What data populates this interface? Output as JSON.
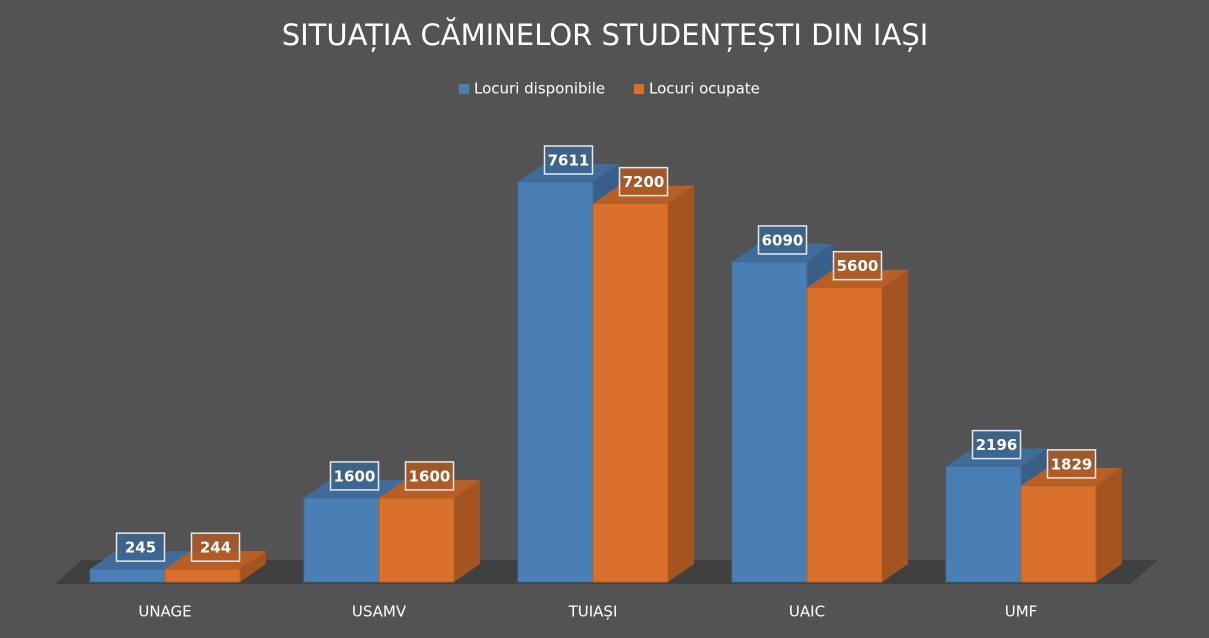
{
  "chart_data": {
    "type": "bar3d",
    "title": "SITUAȚIA CĂMINELOR STUDENȚEȘTI DIN IAȘI",
    "categories": [
      "UNAGE",
      "USAMV",
      "TUIAȘI",
      "UAIC",
      "UMF"
    ],
    "series": [
      {
        "name": "Locuri disponibile",
        "color": "#4a7fb5",
        "values": [
          245,
          1600,
          7611,
          6090,
          2196
        ]
      },
      {
        "name": "Locuri ocupate",
        "color": "#d9702c",
        "values": [
          244,
          1600,
          7200,
          5600,
          1829
        ]
      }
    ],
    "legend": "top"
  }
}
